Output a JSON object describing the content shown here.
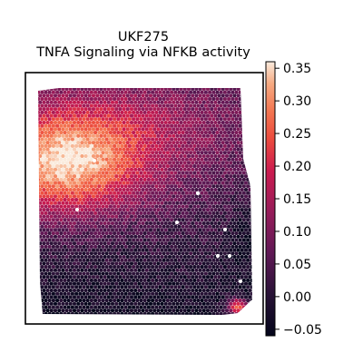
{
  "chart_data": {
    "type": "heatmap",
    "title": "UKF275",
    "subtitle": "TNFA Signaling via NFKB activity",
    "xlabel": "",
    "ylabel": "",
    "colormap": "rocket",
    "colorbar": {
      "range": [
        -0.06,
        0.36
      ],
      "ticks": [
        -0.05,
        0.0,
        0.05,
        0.1,
        0.15,
        0.2,
        0.25,
        0.3,
        0.35
      ],
      "tick_labels": [
        "−0.05",
        "0.00",
        "0.05",
        "0.10",
        "0.15",
        "0.20",
        "0.25",
        "0.30",
        "0.35"
      ]
    },
    "spatial_summary": {
      "high_activity_region": "upper-left band",
      "low_activity_region": "lower half",
      "hotspot": "bottom-right corner"
    },
    "colors": {
      "low": "#03051a",
      "mid": "#a11a5b",
      "high": "#faebdd",
      "frame": "#000000",
      "highlight_spots": "#ffffff"
    }
  }
}
